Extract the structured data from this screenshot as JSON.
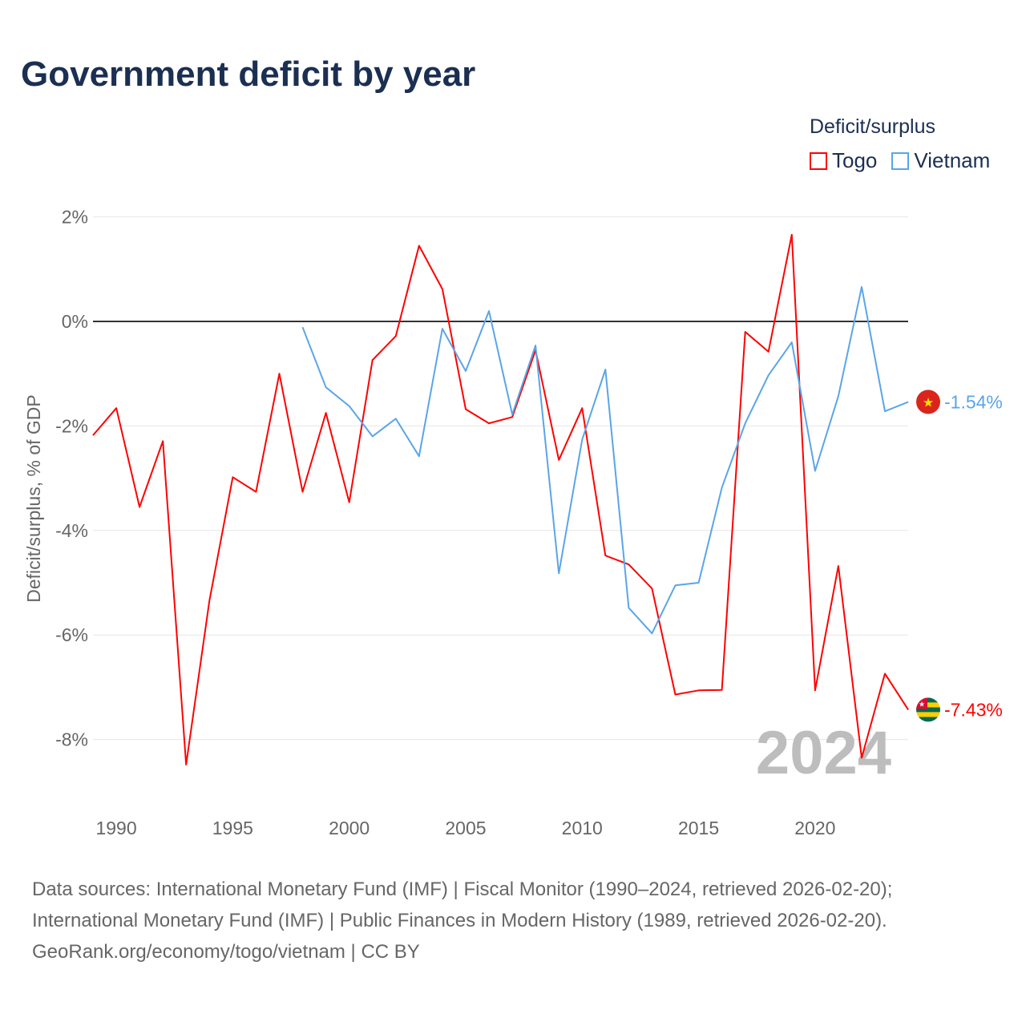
{
  "title": "Government deficit by year",
  "legend": {
    "title": "Deficit/surplus",
    "items": [
      {
        "name": "Togo",
        "color": "#ff0000"
      },
      {
        "name": "Vietnam",
        "color": "#5aa5e8"
      }
    ]
  },
  "source": {
    "line1": "Data sources: International Monetary Fund (IMF) | Fiscal Monitor (1990–2024, retrieved 2026-02-20);",
    "line2": "International Monetary Fund (IMF) | Public Finances in Modern History (1989, retrieved 2026-02-20).",
    "line3": "GeoRank.org/economy/togo/vietnam | CC BY"
  },
  "chart_data": {
    "type": "line",
    "title": "Government deficit by year",
    "xlabel": "",
    "ylabel": "Deficit/surplus, % of GDP",
    "xlim": [
      1989,
      2024
    ],
    "ylim": [
      -9.2,
      2.2
    ],
    "x_ticks": [
      1990,
      1995,
      2000,
      2005,
      2010,
      2015,
      2020
    ],
    "y_ticks": [
      {
        "v": 2,
        "label": "2%"
      },
      {
        "v": 0,
        "label": "0%"
      },
      {
        "v": -2,
        "label": "-2%"
      },
      {
        "v": -4,
        "label": "-4%"
      },
      {
        "v": -6,
        "label": "-6%"
      },
      {
        "v": -8,
        "label": "-8%"
      }
    ],
    "year_watermark": "2024",
    "series": [
      {
        "name": "Togo",
        "color": "#ff0000",
        "end_label": "-7.43%",
        "start": 1989,
        "values": [
          -2.18,
          -1.66,
          -3.55,
          -2.29,
          -8.48,
          -5.34,
          -2.98,
          -3.26,
          -1.0,
          -3.26,
          -1.75,
          -3.46,
          -0.74,
          -0.28,
          1.45,
          0.62,
          -1.68,
          -1.95,
          -1.83,
          -0.55,
          -2.65,
          -1.66,
          -4.48,
          -4.65,
          -5.11,
          -7.14,
          -7.06,
          -7.05,
          -0.2,
          -0.58,
          1.66,
          -7.06,
          -4.68,
          -8.35,
          -6.74,
          -7.43
        ]
      },
      {
        "name": "Vietnam",
        "color": "#5aa5e8",
        "end_label": "-1.54%",
        "start": 1998,
        "values": [
          -0.11,
          -1.26,
          -1.62,
          -2.2,
          -1.86,
          -2.58,
          -0.14,
          -0.95,
          0.2,
          -1.78,
          -0.46,
          -4.82,
          -2.26,
          -0.92,
          -5.48,
          -5.97,
          -5.05,
          -5.0,
          -3.18,
          -1.95,
          -1.03,
          -0.4,
          -2.86,
          -1.43,
          0.66,
          -1.72,
          -1.54
        ]
      }
    ]
  }
}
